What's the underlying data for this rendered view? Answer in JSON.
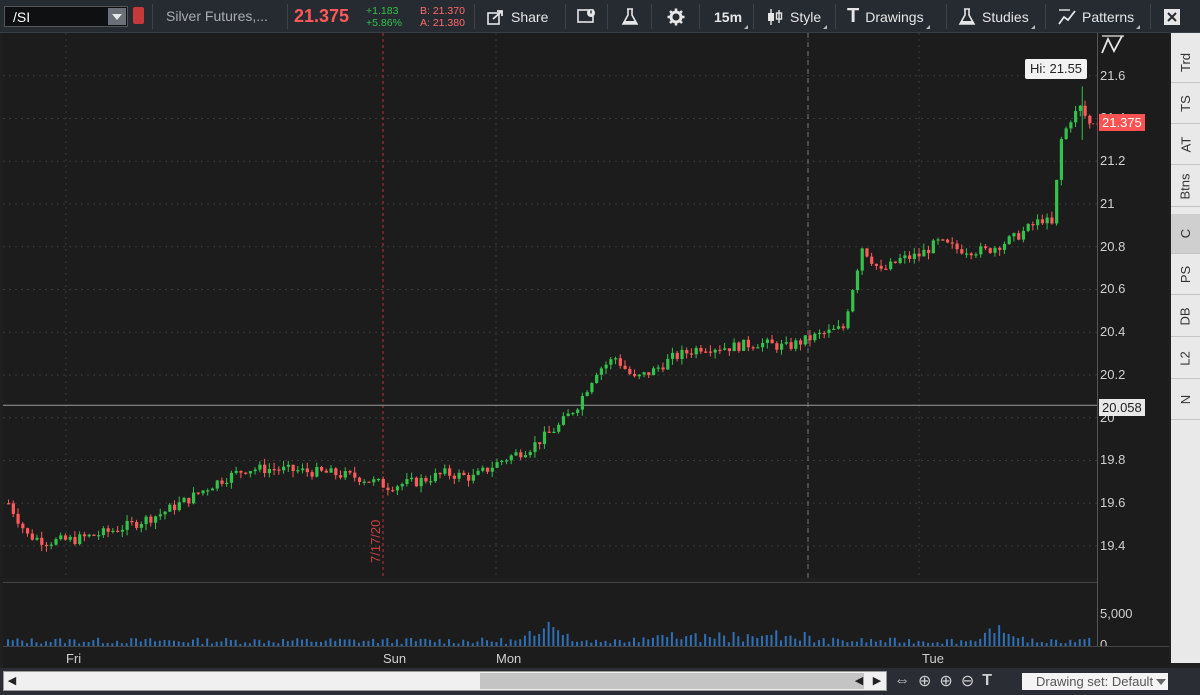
{
  "toolbar": {
    "symbol": "/SI",
    "description": "Silver Futures,...",
    "last_price": "21.375",
    "change": "+1.183",
    "change_pct": "+5.86%",
    "bid": "B: 21.370",
    "ask": "A: 21.380",
    "share_label": "Share",
    "timeframe": "15m",
    "style_label": "Style",
    "drawings_label": "Drawings",
    "studies_label": "Studies",
    "patterns_label": "Patterns",
    "colors": {
      "up": "#33c24b",
      "down": "#ff5a5a",
      "accent": "#c6393a"
    }
  },
  "chart": {
    "price_labels": [
      "21.6",
      "21.4",
      "21.2",
      "21",
      "20.8",
      "20.6",
      "20.4",
      "20.2",
      "20",
      "19.8",
      "19.6",
      "19.4"
    ],
    "last_price_tag": "21.375",
    "crosshair_tag": "20.058",
    "high_label": "Hi: 21.55",
    "date_marker": "7/17/20",
    "volume_label": "5,000",
    "volume_zero": "0",
    "time_labels": [
      "Fri",
      "Sun",
      "Mon",
      "Tue"
    ]
  },
  "chart_data": {
    "type": "candlestick",
    "title": "",
    "ylim": [
      19.25,
      21.8
    ],
    "x_sessions": [
      "Fri",
      "Sun",
      "Mon",
      "Tue"
    ],
    "high": 21.55,
    "last": 21.375,
    "path": [
      [
        0,
        19.6
      ],
      [
        4,
        19.45
      ],
      [
        8,
        19.42
      ],
      [
        14,
        19.43
      ],
      [
        20,
        19.46
      ],
      [
        26,
        19.5
      ],
      [
        32,
        19.55
      ],
      [
        38,
        19.62
      ],
      [
        44,
        19.7
      ],
      [
        50,
        19.76
      ],
      [
        56,
        19.76
      ],
      [
        62,
        19.75
      ],
      [
        68,
        19.74
      ],
      [
        74,
        19.72
      ],
      [
        80,
        19.68
      ],
      [
        86,
        19.7
      ],
      [
        92,
        19.74
      ],
      [
        98,
        19.72
      ],
      [
        104,
        19.8
      ],
      [
        110,
        19.86
      ],
      [
        116,
        19.96
      ],
      [
        120,
        20.06
      ],
      [
        124,
        20.22
      ],
      [
        128,
        20.28
      ],
      [
        132,
        20.18
      ],
      [
        136,
        20.22
      ],
      [
        140,
        20.28
      ],
      [
        146,
        20.33
      ],
      [
        152,
        20.33
      ],
      [
        158,
        20.35
      ],
      [
        164,
        20.33
      ],
      [
        170,
        20.38
      ],
      [
        176,
        20.42
      ],
      [
        180,
        20.8
      ],
      [
        184,
        20.68
      ],
      [
        188,
        20.74
      ],
      [
        192,
        20.76
      ],
      [
        196,
        20.82
      ],
      [
        200,
        20.79
      ],
      [
        206,
        20.78
      ],
      [
        212,
        20.84
      ],
      [
        218,
        20.93
      ],
      [
        220,
        20.9
      ],
      [
        222,
        21.3
      ],
      [
        224,
        21.4
      ],
      [
        226,
        21.45
      ],
      [
        228,
        21.375
      ]
    ],
    "volume_peaks": [
      [
        114,
        3500
      ],
      [
        209,
        2200
      ],
      [
        245,
        8000
      ],
      [
        248,
        6500
      ]
    ],
    "volume_max": 9000,
    "grid": true
  }
}
